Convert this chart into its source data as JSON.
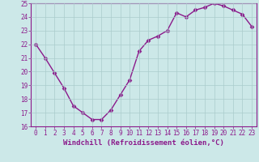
{
  "x": [
    0,
    1,
    2,
    3,
    4,
    5,
    6,
    7,
    8,
    9,
    10,
    11,
    12,
    13,
    14,
    15,
    16,
    17,
    18,
    19,
    20,
    21,
    22,
    23
  ],
  "y": [
    22.0,
    21.0,
    19.9,
    18.8,
    17.5,
    17.0,
    16.5,
    16.5,
    17.2,
    18.3,
    19.4,
    21.5,
    22.3,
    22.6,
    23.0,
    24.3,
    24.0,
    24.5,
    24.7,
    25.0,
    24.8,
    24.5,
    24.2,
    23.3
  ],
  "line_color": "#8b1a8b",
  "marker": "D",
  "marker_size": 2.5,
  "bg_color": "#cce8e8",
  "grid_color": "#aacccc",
  "xlabel": "Windchill (Refroidissement éolien,°C)",
  "xlabel_color": "#8b1a8b",
  "tick_color": "#8b1a8b",
  "ylim": [
    16,
    25
  ],
  "yticks": [
    16,
    17,
    18,
    19,
    20,
    21,
    22,
    23,
    24,
    25
  ],
  "xticks": [
    0,
    1,
    2,
    3,
    4,
    5,
    6,
    7,
    8,
    9,
    10,
    11,
    12,
    13,
    14,
    15,
    16,
    17,
    18,
    19,
    20,
    21,
    22,
    23
  ],
  "xtick_labels": [
    "0",
    "1",
    "2",
    "3",
    "4",
    "5",
    "6",
    "7",
    "8",
    "9",
    "10",
    "11",
    "12",
    "13",
    "14",
    "15",
    "16",
    "17",
    "18",
    "19",
    "20",
    "21",
    "22",
    "23"
  ],
  "line_width": 1.0,
  "tick_fontsize": 5.5,
  "xlabel_fontsize": 6.5,
  "spine_color": "#8b1a8b"
}
